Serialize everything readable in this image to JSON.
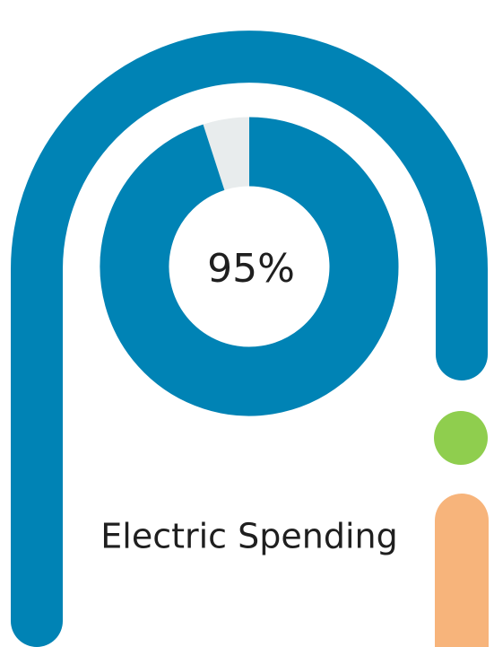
{
  "chart_data": {
    "type": "pie",
    "subtype": "donut",
    "value_percent": 95,
    "remainder_percent": 5,
    "center_label": "95%",
    "caption": "Electric Spending",
    "colors": {
      "filled": "#0083b5",
      "remainder": "#e8eced",
      "arch": "#0083b5",
      "dot": "#8fce4e",
      "pill": "#f7b47b",
      "text": "#1f1f1f"
    }
  }
}
